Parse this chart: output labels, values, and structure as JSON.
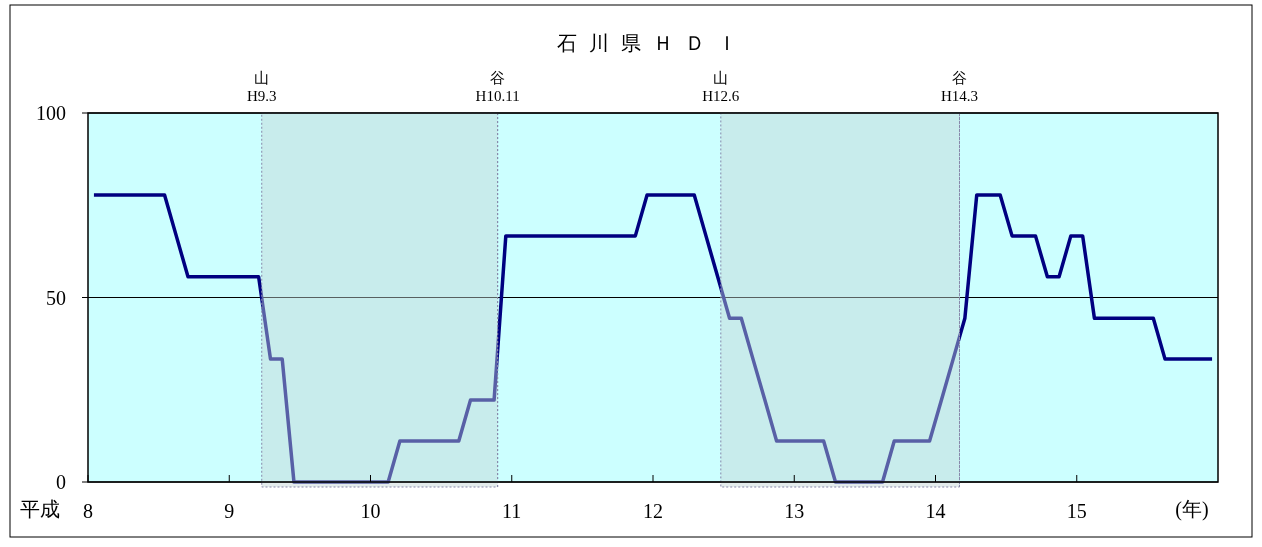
{
  "chart_data": {
    "type": "line",
    "title": "石川県ＨＤＩ",
    "xlabel": "(年)",
    "annotations": [
      "平成"
    ],
    "xlim": [
      8,
      16
    ],
    "xticks": [
      8,
      9,
      10,
      11,
      12,
      13,
      14,
      15
    ],
    "ylim": [
      0,
      100
    ],
    "yticks": [
      0,
      50,
      100
    ],
    "grid": "y",
    "marker": "none",
    "line_style": "solid",
    "bands": [
      {
        "axis": "x",
        "from": 9.23,
        "to": 10.9,
        "label": "山\nH9.3",
        "color": "#c4d4d4"
      },
      {
        "axis": "x",
        "from": 12.48,
        "to": 14.17,
        "label": "山\nH12.6",
        "color": "#c4d4d4"
      }
    ],
    "ref_lines": [
      {
        "axis": "x",
        "value": 10.9,
        "label": "谷\nH10.11"
      },
      {
        "axis": "x",
        "value": 14.17,
        "label": "谷\nH14.3"
      }
    ],
    "series": [
      {
        "color": "#000080",
        "x": [
          8.042,
          8.125,
          8.208,
          8.292,
          8.375,
          8.458,
          8.542,
          8.625,
          8.708,
          8.792,
          8.875,
          8.958,
          9.042,
          9.125,
          9.208,
          9.292,
          9.375,
          9.458,
          9.542,
          9.625,
          9.708,
          9.792,
          9.875,
          9.958,
          10.042,
          10.125,
          10.208,
          10.292,
          10.375,
          10.458,
          10.542,
          10.625,
          10.708,
          10.792,
          10.875,
          10.958,
          11.042,
          11.125,
          11.208,
          11.292,
          11.375,
          11.458,
          11.542,
          11.625,
          11.708,
          11.792,
          11.875,
          11.958,
          12.042,
          12.125,
          12.208,
          12.292,
          12.375,
          12.458,
          12.542,
          12.625,
          12.708,
          12.792,
          12.875,
          12.958,
          13.042,
          13.125,
          13.208,
          13.292,
          13.375,
          13.458,
          13.542,
          13.625,
          13.708,
          13.792,
          13.875,
          13.958,
          14.042,
          14.125,
          14.208,
          14.292,
          14.375,
          14.458,
          14.542,
          14.625,
          14.708,
          14.792,
          14.875,
          14.958,
          15.042,
          15.125,
          15.208,
          15.292,
          15.375,
          15.458,
          15.542,
          15.625,
          15.708,
          15.792,
          15.875,
          15.958
        ],
        "values": [
          77.8,
          77.8,
          77.8,
          77.8,
          77.8,
          77.8,
          77.8,
          66.7,
          55.6,
          55.6,
          55.6,
          55.6,
          55.6,
          55.6,
          55.6,
          33.3,
          33.3,
          0,
          0,
          0,
          0,
          0,
          0,
          0,
          0,
          0,
          11.1,
          11.1,
          11.1,
          11.1,
          11.1,
          11.1,
          22.2,
          22.2,
          22.2,
          66.7,
          66.7,
          66.7,
          66.7,
          66.7,
          66.7,
          66.7,
          66.7,
          66.7,
          66.7,
          66.7,
          66.7,
          77.8,
          77.8,
          77.8,
          77.8,
          77.8,
          66.7,
          55.6,
          44.4,
          44.4,
          33.3,
          22.2,
          11.1,
          11.1,
          11.1,
          11.1,
          11.1,
          0,
          0,
          0,
          0,
          0,
          11.1,
          11.1,
          11.1,
          11.1,
          22.2,
          33.3,
          44.4,
          77.8,
          77.8,
          77.8,
          66.7,
          66.7,
          66.7,
          55.6,
          55.6,
          66.7,
          66.7,
          44.4,
          44.4,
          44.4,
          44.4,
          44.4,
          44.4,
          33.3,
          33.3,
          33.3,
          33.3,
          33.3
        ]
      }
    ]
  }
}
